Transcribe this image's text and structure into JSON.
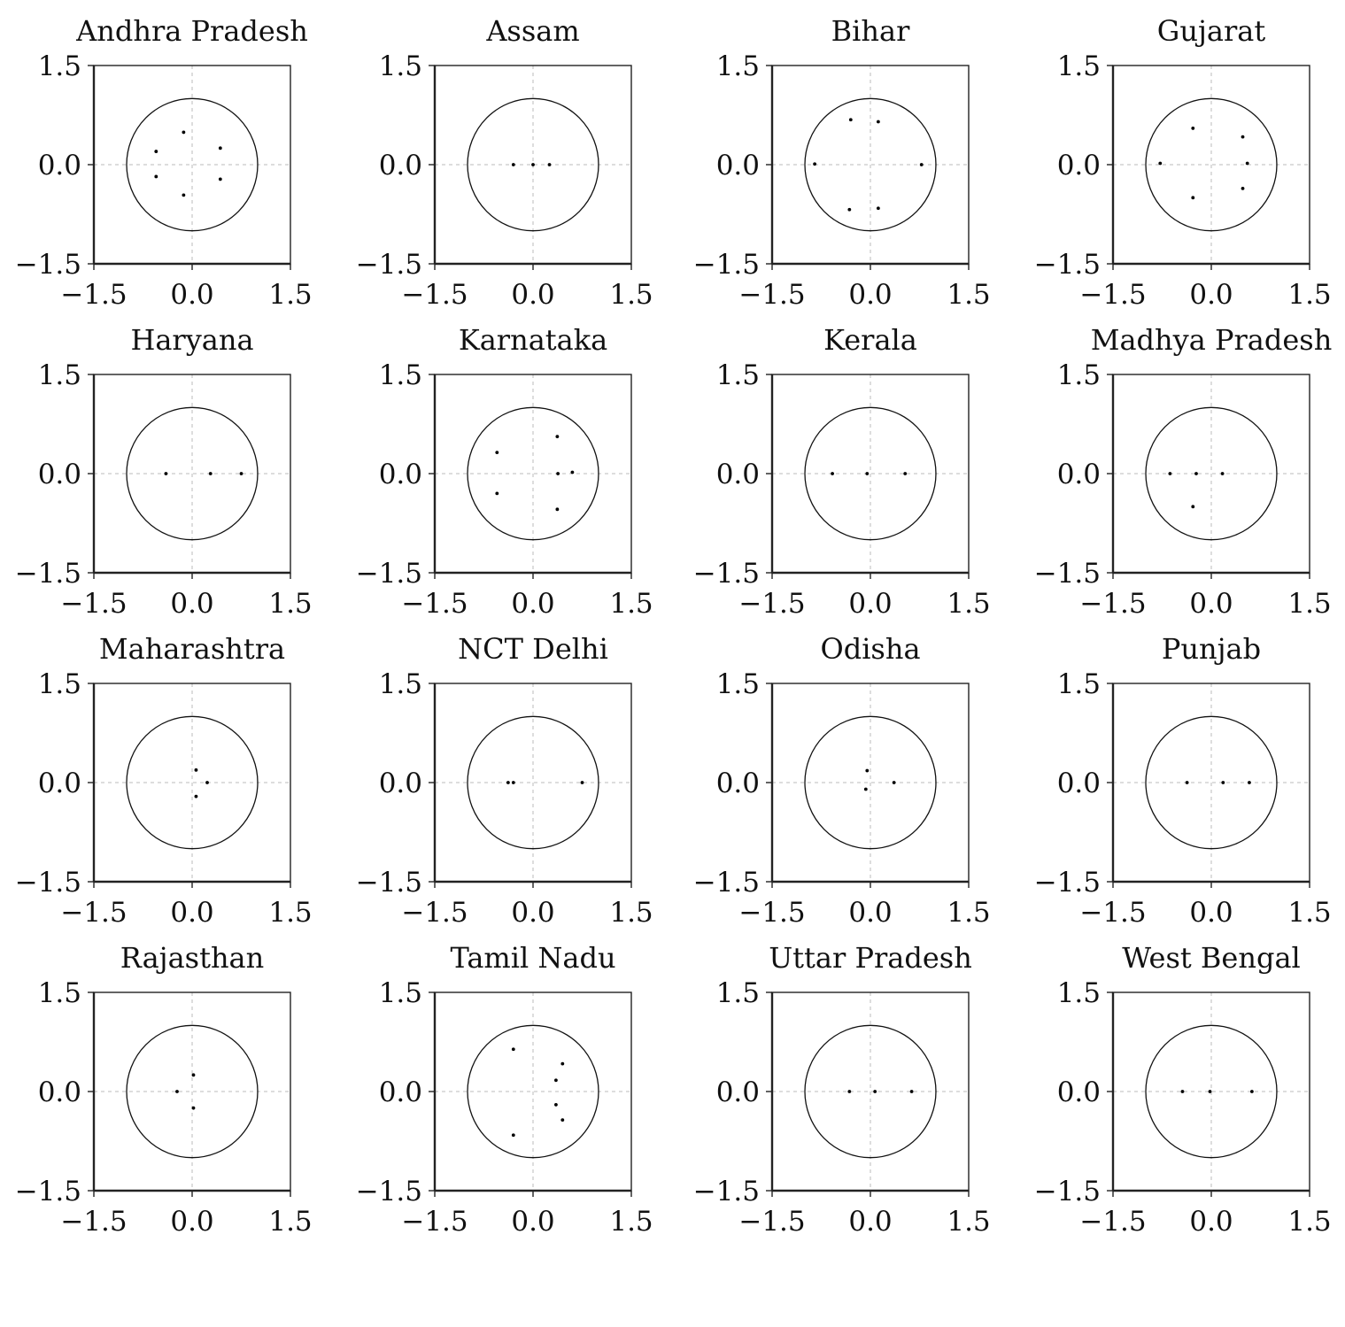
{
  "chart_data": [
    {
      "type": "scatter",
      "title": "Andhra Pradesh",
      "xlim": [
        -1.5,
        1.5
      ],
      "ylim": [
        -1.5,
        1.5
      ],
      "xticks": [
        "−1.5",
        "0.0",
        "1.5"
      ],
      "yticks": [
        "−1.5",
        "0.0",
        "1.5"
      ],
      "unit_circle": true,
      "grid": "origin-dashed",
      "points": [
        [
          -0.13,
          0.49
        ],
        [
          -0.55,
          0.2
        ],
        [
          0.43,
          0.25
        ],
        [
          -0.55,
          -0.18
        ],
        [
          0.43,
          -0.22
        ],
        [
          -0.13,
          -0.46
        ]
      ]
    },
    {
      "type": "scatter",
      "title": "Assam",
      "xlim": [
        -1.5,
        1.5
      ],
      "ylim": [
        -1.5,
        1.5
      ],
      "xticks": [
        "−1.5",
        "0.0",
        "1.5"
      ],
      "yticks": [
        "−1.5",
        "0.0",
        "1.5"
      ],
      "unit_circle": true,
      "grid": "origin-dashed",
      "points": [
        [
          -0.3,
          0.0
        ],
        [
          0.0,
          0.0
        ],
        [
          0.25,
          0.0
        ]
      ]
    },
    {
      "type": "scatter",
      "title": "Bihar",
      "xlim": [
        -1.5,
        1.5
      ],
      "ylim": [
        -1.5,
        1.5
      ],
      "xticks": [
        "−1.5",
        "0.0",
        "1.5"
      ],
      "yticks": [
        "−1.5",
        "0.0",
        "1.5"
      ],
      "unit_circle": true,
      "grid": "origin-dashed",
      "points": [
        [
          -0.3,
          0.68
        ],
        [
          0.12,
          0.65
        ],
        [
          -0.85,
          0.01
        ],
        [
          0.78,
          0.0
        ],
        [
          -0.32,
          -0.68
        ],
        [
          0.12,
          -0.66
        ]
      ]
    },
    {
      "type": "scatter",
      "title": "Gujarat",
      "xlim": [
        -1.5,
        1.5
      ],
      "ylim": [
        -1.5,
        1.5
      ],
      "xticks": [
        "−1.5",
        "0.0",
        "1.5"
      ],
      "yticks": [
        "−1.5",
        "0.0",
        "1.5"
      ],
      "unit_circle": true,
      "grid": "origin-dashed",
      "points": [
        [
          -0.28,
          0.55
        ],
        [
          0.48,
          0.42
        ],
        [
          -0.78,
          0.02
        ],
        [
          0.55,
          0.02
        ],
        [
          -0.28,
          -0.5
        ],
        [
          0.48,
          -0.36
        ]
      ]
    },
    {
      "type": "scatter",
      "title": "Haryana",
      "xlim": [
        -1.5,
        1.5
      ],
      "ylim": [
        -1.5,
        1.5
      ],
      "xticks": [
        "−1.5",
        "0.0",
        "1.5"
      ],
      "yticks": [
        "−1.5",
        "0.0",
        "1.5"
      ],
      "unit_circle": true,
      "grid": "origin-dashed",
      "points": [
        [
          -0.4,
          0.0
        ],
        [
          0.28,
          0.0
        ],
        [
          0.75,
          0.0
        ]
      ]
    },
    {
      "type": "scatter",
      "title": "Karnataka",
      "xlim": [
        -1.5,
        1.5
      ],
      "ylim": [
        -1.5,
        1.5
      ],
      "xticks": [
        "−1.5",
        "0.0",
        "1.5"
      ],
      "yticks": [
        "−1.5",
        "0.0",
        "1.5"
      ],
      "unit_circle": true,
      "grid": "origin-dashed",
      "points": [
        [
          0.37,
          0.56
        ],
        [
          -0.55,
          0.32
        ],
        [
          0.6,
          0.02
        ],
        [
          0.38,
          0.0
        ],
        [
          -0.55,
          -0.3
        ],
        [
          0.37,
          -0.54
        ]
      ]
    },
    {
      "type": "scatter",
      "title": "Kerala",
      "xlim": [
        -1.5,
        1.5
      ],
      "ylim": [
        -1.5,
        1.5
      ],
      "xticks": [
        "−1.5",
        "0.0",
        "1.5"
      ],
      "yticks": [
        "−1.5",
        "0.0",
        "1.5"
      ],
      "unit_circle": true,
      "grid": "origin-dashed",
      "points": [
        [
          -0.58,
          0.0
        ],
        [
          -0.05,
          0.0
        ],
        [
          0.53,
          0.0
        ]
      ]
    },
    {
      "type": "scatter",
      "title": "Madhya Pradesh",
      "xlim": [
        -1.5,
        1.5
      ],
      "ylim": [
        -1.5,
        1.5
      ],
      "xticks": [
        "−1.5",
        "0.0",
        "1.5"
      ],
      "yticks": [
        "−1.5",
        "0.0",
        "1.5"
      ],
      "unit_circle": true,
      "grid": "origin-dashed",
      "points": [
        [
          -0.63,
          0.0
        ],
        [
          -0.23,
          0.0
        ],
        [
          0.17,
          0.0
        ],
        [
          -0.28,
          -0.5
        ]
      ]
    },
    {
      "type": "scatter",
      "title": "Maharashtra",
      "xlim": [
        -1.5,
        1.5
      ],
      "ylim": [
        -1.5,
        1.5
      ],
      "xticks": [
        "−1.5",
        "0.0",
        "1.5"
      ],
      "yticks": [
        "−1.5",
        "0.0",
        "1.5"
      ],
      "unit_circle": true,
      "grid": "origin-dashed",
      "points": [
        [
          0.06,
          0.19
        ],
        [
          0.23,
          0.0
        ],
        [
          0.06,
          -0.21
        ]
      ]
    },
    {
      "type": "scatter",
      "title": "NCT Delhi",
      "xlim": [
        -1.5,
        1.5
      ],
      "ylim": [
        -1.5,
        1.5
      ],
      "xticks": [
        "−1.5",
        "0.0",
        "1.5"
      ],
      "yticks": [
        "−1.5",
        "0.0",
        "1.5"
      ],
      "unit_circle": true,
      "grid": "origin-dashed",
      "points": [
        [
          -0.38,
          0.0
        ],
        [
          -0.3,
          0.0
        ],
        [
          0.75,
          0.0
        ]
      ]
    },
    {
      "type": "scatter",
      "title": "Odisha",
      "xlim": [
        -1.5,
        1.5
      ],
      "ylim": [
        -1.5,
        1.5
      ],
      "xticks": [
        "−1.5",
        "0.0",
        "1.5"
      ],
      "yticks": [
        "−1.5",
        "0.0",
        "1.5"
      ],
      "unit_circle": true,
      "grid": "origin-dashed",
      "points": [
        [
          -0.05,
          0.18
        ],
        [
          0.36,
          0.0
        ],
        [
          -0.07,
          -0.1
        ]
      ]
    },
    {
      "type": "scatter",
      "title": "Punjab",
      "xlim": [
        -1.5,
        1.5
      ],
      "ylim": [
        -1.5,
        1.5
      ],
      "xticks": [
        "−1.5",
        "0.0",
        "1.5"
      ],
      "yticks": [
        "−1.5",
        "0.0",
        "1.5"
      ],
      "unit_circle": true,
      "grid": "origin-dashed",
      "points": [
        [
          -0.37,
          0.0
        ],
        [
          0.18,
          0.0
        ],
        [
          0.58,
          0.0
        ]
      ]
    },
    {
      "type": "scatter",
      "title": "Rajasthan",
      "xlim": [
        -1.5,
        1.5
      ],
      "ylim": [
        -1.5,
        1.5
      ],
      "xticks": [
        "−1.5",
        "0.0",
        "1.5"
      ],
      "yticks": [
        "−1.5",
        "0.0",
        "1.5"
      ],
      "unit_circle": true,
      "grid": "origin-dashed",
      "points": [
        [
          0.02,
          0.25
        ],
        [
          -0.23,
          0.0
        ],
        [
          0.02,
          -0.25
        ]
      ]
    },
    {
      "type": "scatter",
      "title": "Tamil Nadu",
      "xlim": [
        -1.5,
        1.5
      ],
      "ylim": [
        -1.5,
        1.5
      ],
      "xticks": [
        "−1.5",
        "0.0",
        "1.5"
      ],
      "yticks": [
        "−1.5",
        "0.0",
        "1.5"
      ],
      "unit_circle": true,
      "grid": "origin-dashed",
      "points": [
        [
          -0.3,
          0.64
        ],
        [
          0.45,
          0.42
        ],
        [
          0.35,
          0.17
        ],
        [
          0.35,
          -0.2
        ],
        [
          0.45,
          -0.43
        ],
        [
          -0.3,
          -0.66
        ]
      ]
    },
    {
      "type": "scatter",
      "title": "Uttar Pradesh",
      "xlim": [
        -1.5,
        1.5
      ],
      "ylim": [
        -1.5,
        1.5
      ],
      "xticks": [
        "−1.5",
        "0.0",
        "1.5"
      ],
      "yticks": [
        "−1.5",
        "0.0",
        "1.5"
      ],
      "unit_circle": true,
      "grid": "origin-dashed",
      "points": [
        [
          -0.32,
          0.0
        ],
        [
          0.07,
          0.0
        ],
        [
          0.63,
          0.0
        ]
      ]
    },
    {
      "type": "scatter",
      "title": "West Bengal",
      "xlim": [
        -1.5,
        1.5
      ],
      "ylim": [
        -1.5,
        1.5
      ],
      "xticks": [
        "−1.5",
        "0.0",
        "1.5"
      ],
      "yticks": [
        "−1.5",
        "0.0",
        "1.5"
      ],
      "unit_circle": true,
      "grid": "origin-dashed",
      "points": [
        [
          -0.44,
          0.0
        ],
        [
          -0.02,
          0.0
        ],
        [
          0.62,
          0.0
        ]
      ]
    }
  ]
}
